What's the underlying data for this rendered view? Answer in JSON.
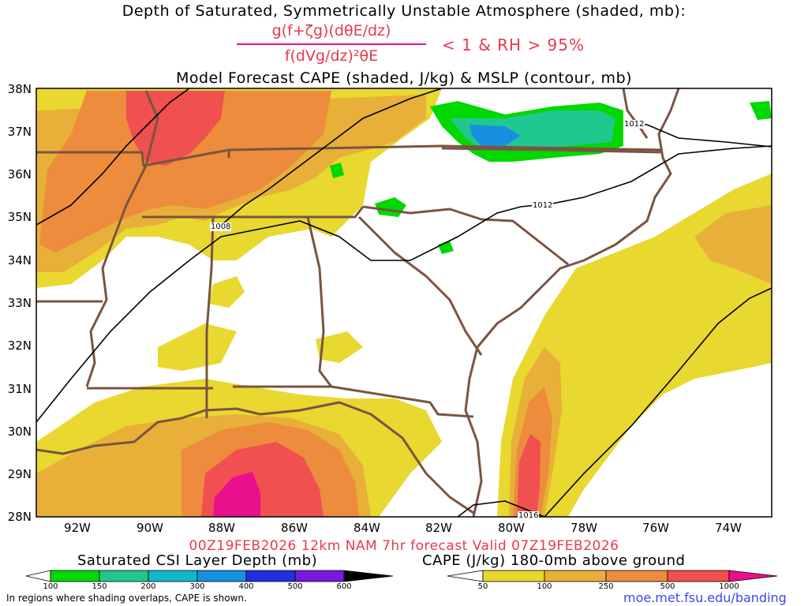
{
  "title": {
    "line1": "Depth of Saturated, Symmetrically Unstable Atmosphere (shaded, mb):",
    "numerator": "g(f+ζg)(dθE/dz)",
    "denominator": "f(dVg/dz)²θE",
    "criteria": "< 1 & RH > 95%",
    "line3": "Model Forecast CAPE (shaded, J/kg) & MSLP (contour, mb)"
  },
  "axes": {
    "lat_labels": [
      "38N",
      "37N",
      "36N",
      "35N",
      "34N",
      "33N",
      "32N",
      "31N",
      "30N",
      "29N",
      "28N"
    ],
    "lon_labels": [
      "92W",
      "90W",
      "88W",
      "86W",
      "84W",
      "82W",
      "80W",
      "78W",
      "76W",
      "74W"
    ]
  },
  "contour_labels": [
    "1012",
    "1012",
    "1008",
    "1016"
  ],
  "valid_line": "00Z19FEB2026 12km NAM 7hr forecast Valid 07Z19FEB2026",
  "csi_colorbar": {
    "label": "Saturated CSI Layer Depth (mb)",
    "ticks": [
      "100",
      "150",
      "200",
      "300",
      "400",
      "500",
      "600"
    ],
    "colors": [
      "#ffffff",
      "#00d800",
      "#20c890",
      "#10b8c8",
      "#1890e0",
      "#2030e0",
      "#7818e0",
      "#000000"
    ]
  },
  "cape_colorbar": {
    "label": "CAPE (J/kg) 180-0mb above ground",
    "ticks": [
      "50",
      "100",
      "250",
      "500",
      "1000"
    ],
    "colors": [
      "#ffffff",
      "#e8d830",
      "#e8b038",
      "#ec8c3c",
      "#f05050",
      "#e8108c"
    ]
  },
  "footer": {
    "note": "In regions where shading overlaps, CAPE is shown.",
    "url": "moe.met.fsu.edu/banding"
  },
  "colors": {
    "cape_yellow": "#e8d830",
    "cape_gold": "#e8b038",
    "cape_orange": "#ec8c3c",
    "cape_red": "#f05050",
    "cape_magenta": "#e8108c",
    "csi_green": "#00d800",
    "csi_cyan": "#20c890",
    "csi_blue": "#1890e0",
    "borders": "#7a5440"
  }
}
